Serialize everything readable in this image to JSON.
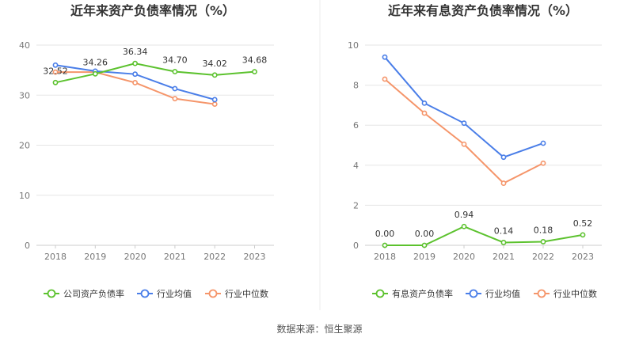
{
  "source": "数据来源：恒生聚源",
  "colors": {
    "company": "#5cc22e",
    "industry_avg": "#4a7ee8",
    "industry_median": "#f5956a"
  },
  "chart_data": [
    {
      "type": "line",
      "title": "近年来资产负债率情况（%）",
      "categories": [
        "2018",
        "2019",
        "2020",
        "2021",
        "2022",
        "2023"
      ],
      "y_ticks": [
        "0",
        "10",
        "20",
        "30",
        "40"
      ],
      "ylim": [
        0,
        40
      ],
      "grid": true,
      "legend_position": "bottom",
      "series": [
        {
          "name": "公司资产负债率",
          "color_key": "company",
          "values": [
            32.52,
            34.26,
            36.34,
            34.7,
            34.02,
            34.68
          ],
          "labels": [
            "32.52",
            "34.26",
            "36.34",
            "34.70",
            "34.02",
            "34.68"
          ]
        },
        {
          "name": "行业均值",
          "color_key": "industry_avg",
          "values": [
            36.0,
            34.8,
            34.2,
            31.3,
            29.1,
            null
          ]
        },
        {
          "name": "行业中位数",
          "color_key": "industry_median",
          "values": [
            34.6,
            34.6,
            32.5,
            29.3,
            28.2,
            null
          ]
        }
      ]
    },
    {
      "type": "line",
      "title": "近年来有息资产负债率情况（%）",
      "categories": [
        "2018",
        "2019",
        "2020",
        "2021",
        "2022",
        "2023"
      ],
      "y_ticks": [
        "0",
        "2",
        "4",
        "6",
        "8",
        "10"
      ],
      "ylim": [
        0,
        10
      ],
      "grid": true,
      "legend_position": "bottom",
      "series": [
        {
          "name": "有息资产负债率",
          "color_key": "company",
          "values": [
            0.0,
            0.0,
            0.94,
            0.14,
            0.18,
            0.52
          ],
          "labels": [
            "0.00",
            "0.00",
            "0.94",
            "0.14",
            "0.18",
            "0.52"
          ]
        },
        {
          "name": "行业均值",
          "color_key": "industry_avg",
          "values": [
            9.4,
            7.1,
            6.1,
            4.4,
            5.1,
            null
          ]
        },
        {
          "name": "行业中位数",
          "color_key": "industry_median",
          "values": [
            8.3,
            6.6,
            5.05,
            3.1,
            4.1,
            null
          ]
        }
      ]
    }
  ]
}
